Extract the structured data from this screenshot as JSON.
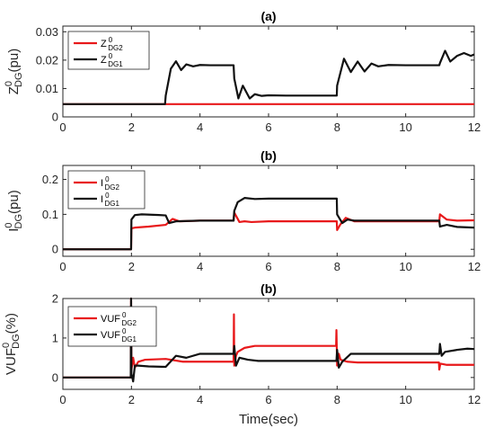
{
  "chart_data": [
    {
      "type": "line",
      "title": "(a)",
      "xlabel": "",
      "ylabel": {
        "main": "Z",
        "sup": "0",
        "sub": "DG",
        "unit": "(pu)"
      },
      "xlim": [
        0,
        12
      ],
      "ylim": [
        0,
        0.032
      ],
      "xticks": [
        "0",
        "2",
        "4",
        "6",
        "8",
        "10",
        "12"
      ],
      "yticks": [
        "0",
        "0.01",
        "0.02",
        "0.03"
      ],
      "grid": false,
      "legend_position": "top-left",
      "series": [
        {
          "name": "Z 0 DG2",
          "label": {
            "main": "Z",
            "sup": "0",
            "sub": "DG2"
          },
          "color": "#e8191b",
          "x": [
            0,
            12
          ],
          "y": [
            0.0045,
            0.0045
          ]
        },
        {
          "name": "Z 0 DG1",
          "label": {
            "main": "Z",
            "sup": "0",
            "sub": "DG1"
          },
          "color": "#111111",
          "x": [
            0,
            2.98,
            3.0,
            3.15,
            3.3,
            3.45,
            3.6,
            3.8,
            4.0,
            4.3,
            4.98,
            5.0,
            5.12,
            5.25,
            5.45,
            5.6,
            5.8,
            6.0,
            6.5,
            7.99,
            8.0,
            8.2,
            8.4,
            8.6,
            8.8,
            9.0,
            9.2,
            9.5,
            10.0,
            10.98,
            11.0,
            11.15,
            11.3,
            11.5,
            11.7,
            11.9,
            12.0
          ],
          "y": [
            0.0045,
            0.0045,
            0.0075,
            0.017,
            0.0196,
            0.0165,
            0.0185,
            0.0178,
            0.0183,
            0.0182,
            0.0182,
            0.0135,
            0.0065,
            0.011,
            0.0065,
            0.008,
            0.0074,
            0.0076,
            0.0075,
            0.0075,
            0.011,
            0.0205,
            0.0158,
            0.0195,
            0.016,
            0.0188,
            0.0178,
            0.0183,
            0.0182,
            0.0182,
            0.019,
            0.0233,
            0.0195,
            0.0215,
            0.0225,
            0.0215,
            0.022
          ]
        }
      ]
    },
    {
      "type": "line",
      "title": "(b)",
      "xlabel": "",
      "ylabel": {
        "main": "I",
        "sup": "0",
        "sub": "DG",
        "unit": "(pu)"
      },
      "xlim": [
        0,
        12
      ],
      "ylim": [
        -0.02,
        0.24
      ],
      "xticks": [
        "0",
        "2",
        "4",
        "6",
        "8",
        "10",
        "12"
      ],
      "yticks": [
        "0",
        "0.1",
        "0.2"
      ],
      "grid": false,
      "legend_position": "top-left",
      "series": [
        {
          "name": "I 0 DG2",
          "label": {
            "main": "I",
            "sup": "0",
            "sub": "DG2"
          },
          "color": "#e8191b",
          "x": [
            0,
            1.99,
            2.0,
            2.1,
            2.5,
            3.0,
            3.2,
            3.4,
            4.0,
            4.98,
            5.0,
            5.15,
            5.3,
            5.5,
            6.0,
            7.99,
            8.0,
            8.1,
            8.25,
            8.5,
            10.98,
            11.0,
            11.2,
            11.5,
            12.0
          ],
          "y": [
            0,
            0,
            0.06,
            0.062,
            0.065,
            0.07,
            0.087,
            0.08,
            0.082,
            0.082,
            0.105,
            0.078,
            0.08,
            0.078,
            0.08,
            0.08,
            0.055,
            0.072,
            0.09,
            0.08,
            0.08,
            0.1,
            0.085,
            0.082,
            0.083
          ]
        },
        {
          "name": "I 0 DG1",
          "label": {
            "main": "I",
            "sup": "0",
            "sub": "DG1"
          },
          "color": "#111111",
          "x": [
            0,
            1.99,
            2.0,
            2.1,
            2.3,
            2.8,
            3.0,
            3.1,
            3.3,
            4.0,
            4.98,
            5.0,
            5.1,
            5.3,
            5.6,
            6.0,
            7.99,
            8.0,
            8.15,
            8.3,
            8.5,
            10.98,
            11.0,
            11.2,
            11.5,
            12.0
          ],
          "y": [
            0,
            0,
            0.085,
            0.098,
            0.1,
            0.098,
            0.097,
            0.075,
            0.08,
            0.082,
            0.082,
            0.11,
            0.135,
            0.147,
            0.144,
            0.145,
            0.145,
            0.1,
            0.075,
            0.085,
            0.082,
            0.082,
            0.065,
            0.07,
            0.064,
            0.062
          ]
        }
      ]
    },
    {
      "type": "line",
      "title": "(b)",
      "xlabel": "Time(sec)",
      "ylabel": {
        "main": "VUF",
        "sup": "0",
        "sub": "DG",
        "unit": "(%)"
      },
      "xlim": [
        0,
        12
      ],
      "ylim": [
        -0.3,
        2.0
      ],
      "xticks": [
        "0",
        "2",
        "4",
        "6",
        "8",
        "10",
        "12"
      ],
      "yticks": [
        "0",
        "1",
        "2"
      ],
      "grid": false,
      "legend_position": "top-left",
      "series": [
        {
          "name": "VUF 0 DG2",
          "label": {
            "main": "VUF",
            "sup": "0",
            "sub": "DG2"
          },
          "color": "#e8191b",
          "x": [
            0,
            1.98,
            1.99,
            2.0,
            2.05,
            2.1,
            2.2,
            2.4,
            3.0,
            3.5,
            4.0,
            4.98,
            4.99,
            5.0,
            5.05,
            5.1,
            5.3,
            5.6,
            6.0,
            7.97,
            7.98,
            8.0,
            8.05,
            8.1,
            8.3,
            8.6,
            9.0,
            10.97,
            10.98,
            11.0,
            11.02,
            11.2,
            12.0
          ],
          "y": [
            0,
            0,
            2.0,
            0.2,
            0.5,
            0.25,
            0.4,
            0.45,
            0.47,
            0.4,
            0.4,
            0.4,
            1.6,
            0.3,
            0.55,
            0.65,
            0.75,
            0.8,
            0.8,
            0.8,
            1.2,
            0.3,
            0.6,
            0.45,
            0.4,
            0.38,
            0.38,
            0.38,
            0.2,
            0.3,
            0.35,
            0.32,
            0.32
          ]
        },
        {
          "name": "VUF 0 DG1",
          "label": {
            "main": "VUF",
            "sup": "0",
            "sub": "DG1"
          },
          "color": "#111111",
          "x": [
            0,
            1.98,
            1.99,
            2.0,
            2.05,
            2.1,
            2.2,
            2.5,
            3.0,
            3.3,
            3.6,
            4.0,
            4.98,
            5.0,
            5.05,
            5.15,
            5.4,
            5.7,
            6.0,
            7.98,
            8.0,
            8.05,
            8.15,
            8.4,
            8.8,
            9.0,
            10.98,
            11.0,
            11.05,
            11.15,
            11.5,
            11.8,
            12.0
          ],
          "y": [
            0,
            0,
            2.0,
            0.1,
            -0.1,
            0.3,
            0.3,
            0.28,
            0.27,
            0.55,
            0.5,
            0.6,
            0.6,
            0.8,
            0.3,
            0.5,
            0.45,
            0.42,
            0.42,
            0.42,
            0.7,
            0.25,
            0.4,
            0.6,
            0.6,
            0.6,
            0.6,
            0.85,
            0.55,
            0.65,
            0.7,
            0.73,
            0.72
          ]
        }
      ]
    }
  ]
}
